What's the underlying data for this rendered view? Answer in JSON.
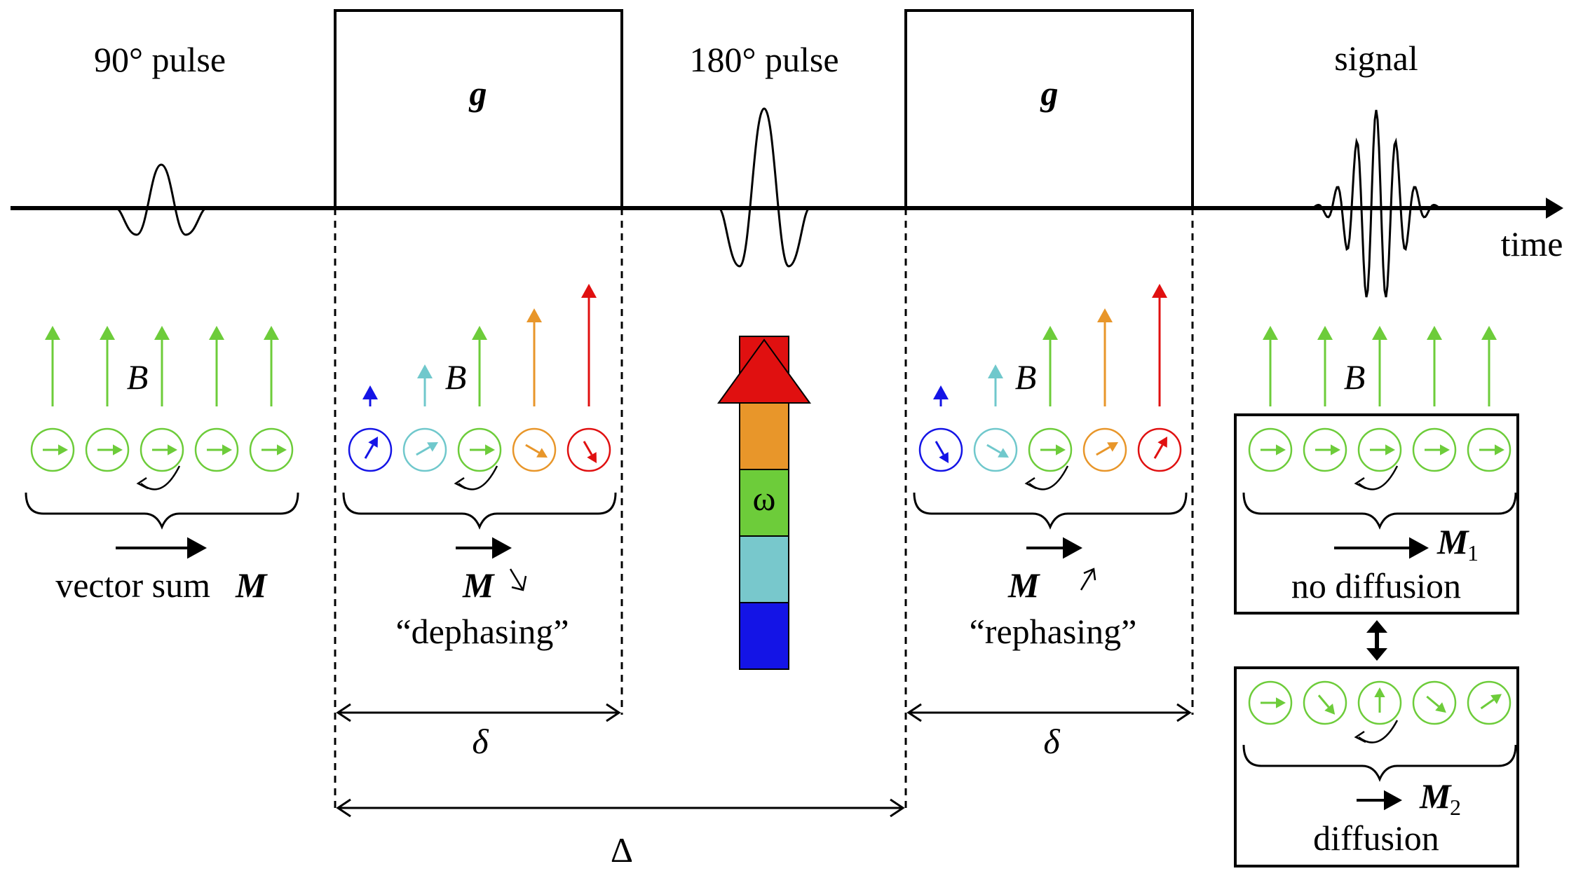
{
  "labels": {
    "pulse90": "90° pulse",
    "pulse180": "180° pulse",
    "signal": "signal",
    "time": "time",
    "gradient": "g",
    "field": "B",
    "vector_sum": "vector sum",
    "magnetization": "M",
    "dephasing": "“dephasing”",
    "rephasing": "“rephasing”",
    "omega": "ω",
    "small_delta": "δ",
    "big_delta": "Δ",
    "M1_sub": "1",
    "M2_sub": "2",
    "no_diffusion": "no diffusion",
    "diffusion": "diffusion"
  },
  "colors": {
    "green": "#6dcc3a",
    "blue": "#1414e6",
    "cyan": "#70c8cc",
    "orange": "#e8962a",
    "red": "#e01010",
    "axis": "#000000"
  },
  "omega_bar_colors": [
    "#1414e6",
    "#78c8cc",
    "#6dcc3a",
    "#e8962a",
    "#e01010"
  ]
}
